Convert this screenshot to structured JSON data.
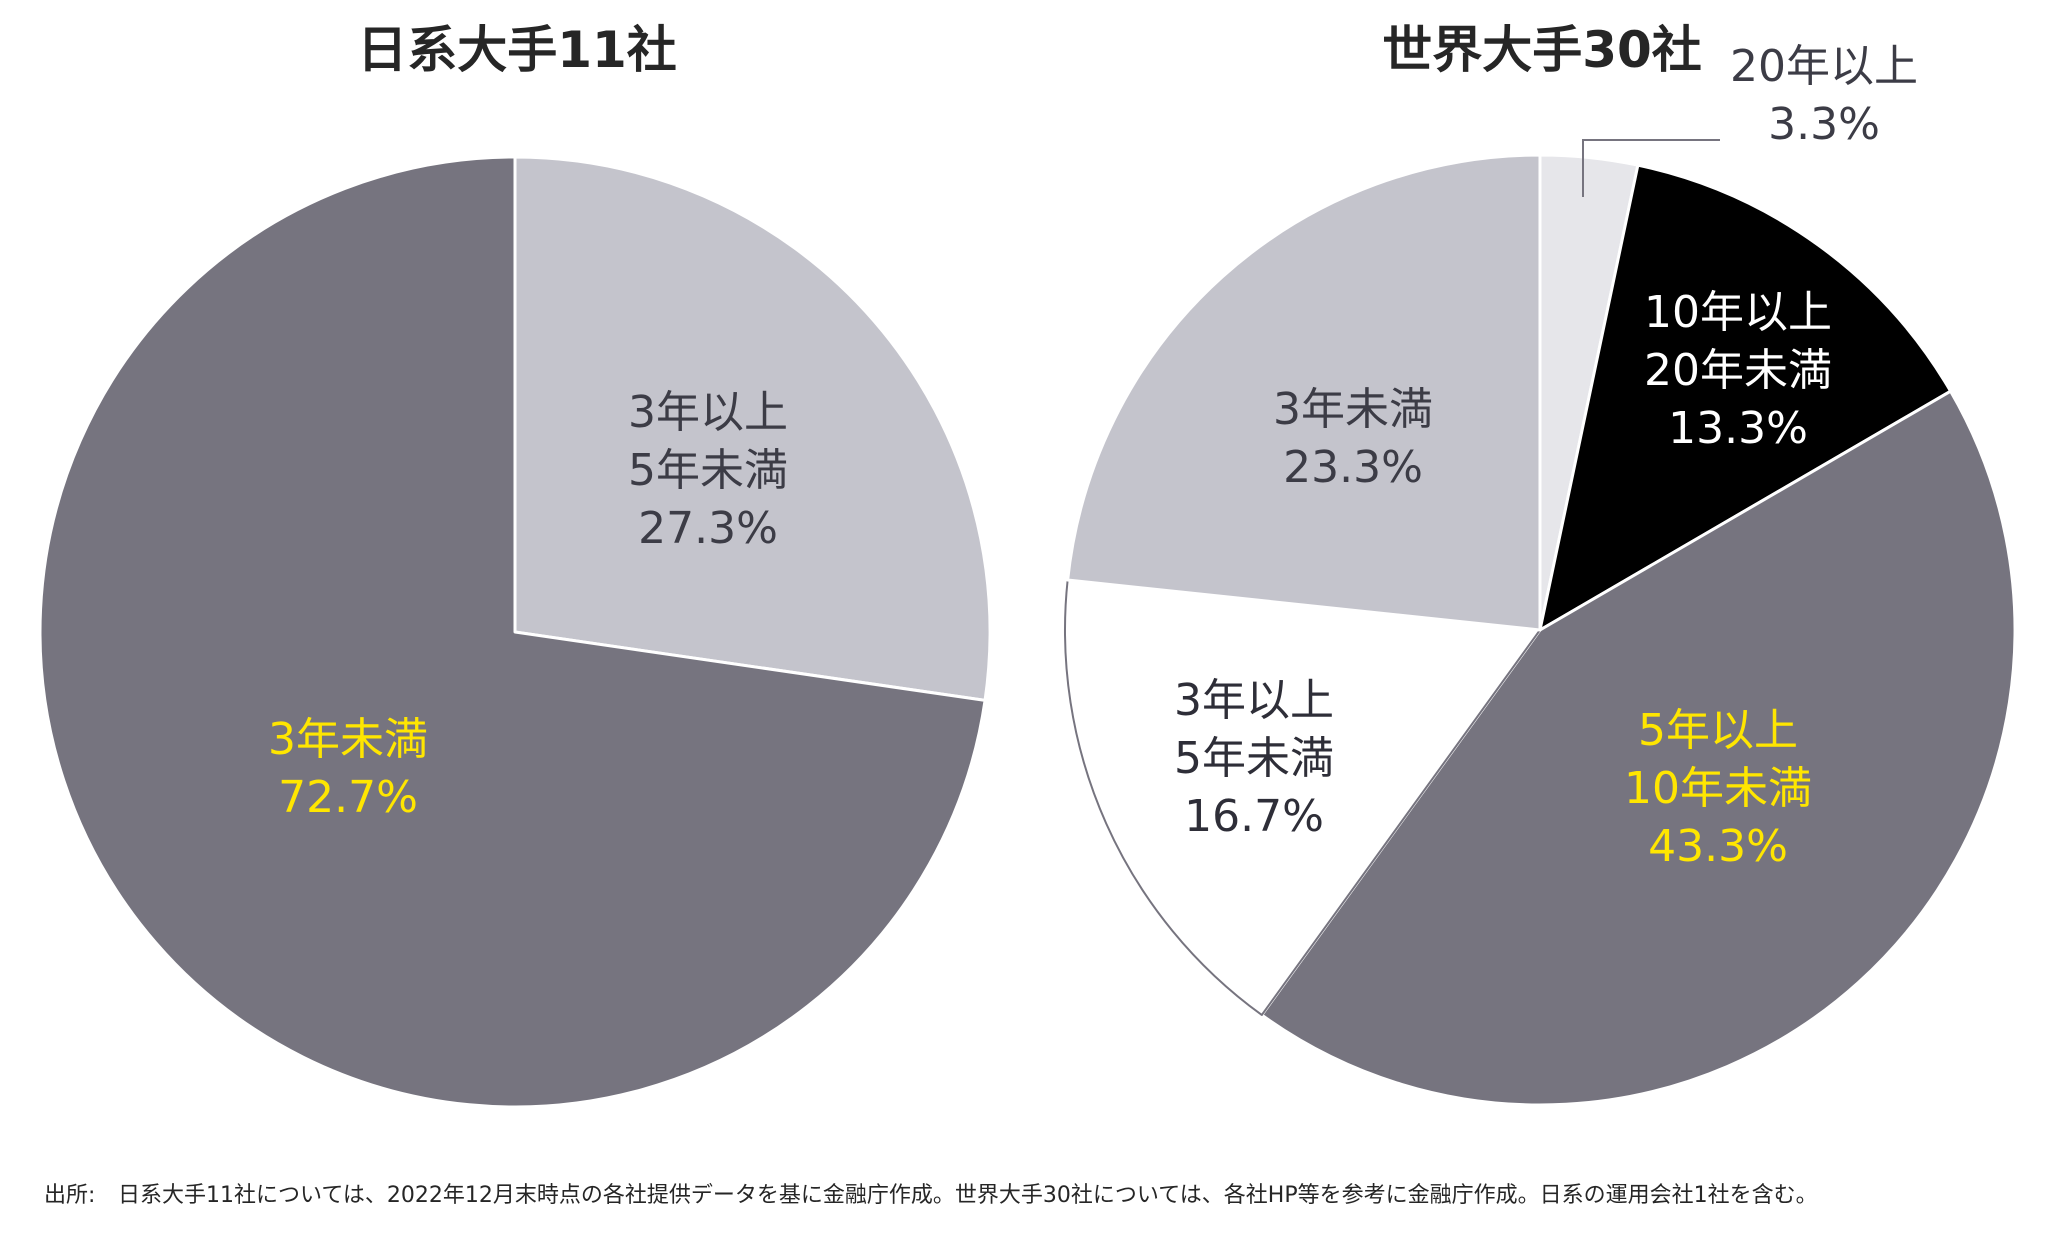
{
  "chart_data": [
    {
      "type": "pie",
      "title": "日系大手11社",
      "unit": "%",
      "slices": [
        {
          "name": "3年以上5年未満",
          "label_lines": [
            "3年以上",
            "5年未満"
          ],
          "pct_text": "27.3%",
          "value": 27.3,
          "color": "#c4c4cc",
          "text_color": "#3c3c46"
        },
        {
          "name": "3年未満",
          "label_lines": [
            "3年未満"
          ],
          "pct_text": "72.7%",
          "value": 72.7,
          "color": "#76747f",
          "text_color": "#ffe600"
        }
      ]
    },
    {
      "type": "pie",
      "title": "世界大手30社",
      "unit": "%",
      "slices": [
        {
          "name": "20年以上",
          "label_lines": [
            "20年以上"
          ],
          "pct_text": "3.3%",
          "value": 3.3,
          "color": "#e6e6ea",
          "text_color": "#3c3c46",
          "callout": true
        },
        {
          "name": "10年以上20年未満",
          "label_lines": [
            "10年以上",
            "20年未満"
          ],
          "pct_text": "13.3%",
          "value": 13.3,
          "color": "#000000",
          "text_color": "#ffffff"
        },
        {
          "name": "5年以上10年未満",
          "label_lines": [
            "5年以上",
            "10年未満"
          ],
          "pct_text": "43.3%",
          "value": 43.3,
          "color": "#76747f",
          "text_color": "#ffe600"
        },
        {
          "name": "3年以上5年未満",
          "label_lines": [
            "3年以上",
            "5年未満"
          ],
          "pct_text": "16.7%",
          "value": 16.7,
          "color": "#ffffff",
          "text_color": "#2e2e38"
        },
        {
          "name": "3年未満",
          "label_lines": [
            "3年未満"
          ],
          "pct_text": "23.3%",
          "value": 23.3,
          "color": "#c4c4cc",
          "text_color": "#3c3c46"
        }
      ]
    }
  ],
  "footnote": {
    "source_label": "出所:",
    "text": "日系大手11社については、2022年12月末時点の各社提供データを基に金融庁作成。世界大手30社については、各社HP等を参考に金融庁作成。日系の運用会社1社を含む。"
  }
}
